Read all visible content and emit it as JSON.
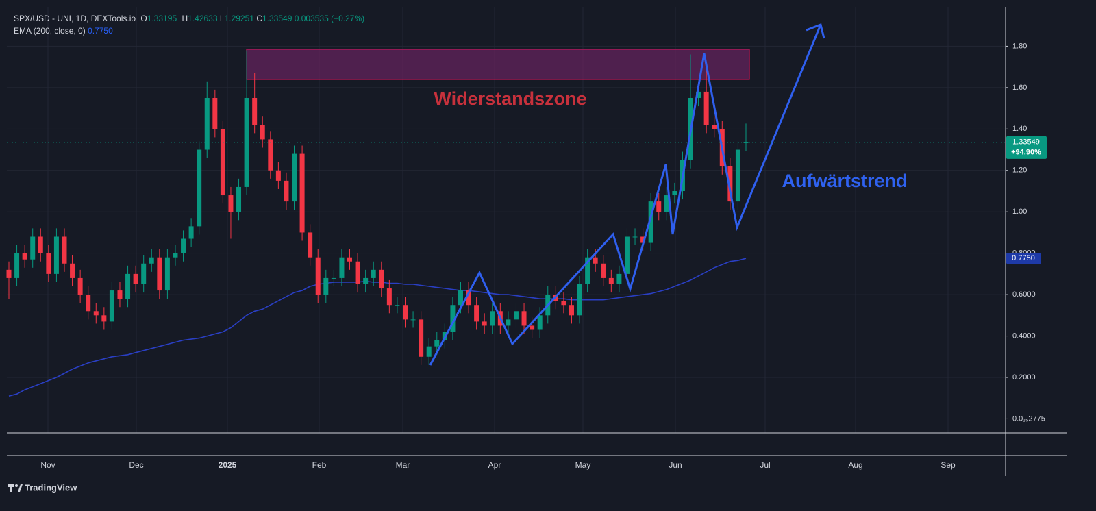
{
  "chart_data": {
    "type": "candlestick",
    "title": "SPX/USD - UNI, 1D, DEXTools.io",
    "legend_keys": [
      "O",
      "H",
      "L",
      "C"
    ],
    "change": "0.003535 (+0.27%)",
    "up_color": "#089981",
    "down_color": "#f23645",
    "open": [
      0.72,
      0.68,
      0.8,
      0.77,
      0.88,
      0.8,
      0.7,
      0.88,
      0.75,
      0.68,
      0.6,
      0.52,
      0.5,
      0.47,
      0.62,
      0.58,
      0.7,
      0.65,
      0.75,
      0.78,
      0.62,
      0.78,
      0.8,
      0.87,
      0.93,
      1.3,
      1.55,
      1.4,
      1.08,
      1.0,
      1.12,
      1.55,
      1.42,
      1.35,
      1.2,
      1.15,
      1.05,
      1.28,
      0.9,
      0.78,
      0.6,
      0.68,
      0.68,
      0.78,
      0.76,
      0.65,
      0.68,
      0.72,
      0.63,
      0.55,
      0.55,
      0.48,
      0.48,
      0.3,
      0.35,
      0.38,
      0.42,
      0.55,
      0.62,
      0.55,
      0.47,
      0.45,
      0.52,
      0.45,
      0.48,
      0.52,
      0.45,
      0.43,
      0.5,
      0.6,
      0.57,
      0.55,
      0.5,
      0.65,
      0.78,
      0.75,
      0.68,
      0.65,
      0.7,
      0.88,
      0.88,
      0.85,
      1.05,
      1.0,
      1.08,
      1.1,
      1.25,
      1.55,
      1.58,
      1.42,
      1.4,
      1.22,
      1.05,
      1.33195
    ],
    "high": [
      0.76,
      0.84,
      0.84,
      0.92,
      0.92,
      0.84,
      0.92,
      0.92,
      0.79,
      0.72,
      0.64,
      0.56,
      0.54,
      0.66,
      0.66,
      0.74,
      0.74,
      0.79,
      0.82,
      0.82,
      0.82,
      0.84,
      0.91,
      0.97,
      1.34,
      1.63,
      1.59,
      1.44,
      1.12,
      1.16,
      1.78,
      1.67,
      1.46,
      1.39,
      1.24,
      1.19,
      1.32,
      1.32,
      0.94,
      0.82,
      0.72,
      0.72,
      0.82,
      0.82,
      0.8,
      0.72,
      0.76,
      0.76,
      0.67,
      0.59,
      0.59,
      0.52,
      0.52,
      0.39,
      0.42,
      0.46,
      0.59,
      0.66,
      0.66,
      0.59,
      0.51,
      0.56,
      0.56,
      0.52,
      0.56,
      0.56,
      0.49,
      0.54,
      0.64,
      0.64,
      0.61,
      0.59,
      0.69,
      0.82,
      0.82,
      0.79,
      0.72,
      0.74,
      0.92,
      0.92,
      0.92,
      1.09,
      1.09,
      1.12,
      1.14,
      1.29,
      1.76,
      1.62,
      1.7,
      1.46,
      1.44,
      1.26,
      1.34,
      1.42633
    ],
    "low": [
      0.58,
      0.64,
      0.73,
      0.73,
      0.76,
      0.66,
      0.66,
      0.71,
      0.64,
      0.56,
      0.48,
      0.46,
      0.43,
      0.43,
      0.54,
      0.54,
      0.61,
      0.61,
      0.71,
      0.58,
      0.58,
      0.74,
      0.76,
      0.83,
      0.89,
      1.26,
      1.36,
      1.04,
      0.87,
      0.96,
      1.08,
      1.38,
      1.31,
      1.16,
      1.11,
      1.01,
      1.01,
      0.86,
      0.74,
      0.56,
      0.56,
      0.64,
      0.64,
      0.72,
      0.61,
      0.61,
      0.64,
      0.59,
      0.51,
      0.51,
      0.44,
      0.44,
      0.26,
      0.26,
      0.31,
      0.34,
      0.38,
      0.51,
      0.51,
      0.43,
      0.41,
      0.41,
      0.41,
      0.41,
      0.44,
      0.41,
      0.39,
      0.39,
      0.46,
      0.53,
      0.51,
      0.46,
      0.46,
      0.61,
      0.71,
      0.64,
      0.61,
      0.61,
      0.66,
      0.84,
      0.81,
      0.81,
      0.96,
      0.96,
      1.04,
      1.06,
      1.21,
      1.51,
      1.38,
      1.36,
      1.18,
      1.01,
      1.01,
      1.29251
    ],
    "close": [
      0.68,
      0.8,
      0.77,
      0.88,
      0.8,
      0.7,
      0.88,
      0.75,
      0.68,
      0.6,
      0.52,
      0.5,
      0.47,
      0.62,
      0.58,
      0.7,
      0.65,
      0.75,
      0.78,
      0.62,
      0.78,
      0.8,
      0.87,
      0.93,
      1.3,
      1.55,
      1.4,
      1.08,
      1.0,
      1.12,
      1.55,
      1.42,
      1.35,
      1.2,
      1.15,
      1.05,
      1.28,
      0.9,
      0.78,
      0.6,
      0.68,
      0.68,
      0.78,
      0.76,
      0.65,
      0.68,
      0.72,
      0.63,
      0.55,
      0.55,
      0.48,
      0.48,
      0.3,
      0.35,
      0.38,
      0.42,
      0.55,
      0.62,
      0.55,
      0.47,
      0.45,
      0.52,
      0.45,
      0.48,
      0.52,
      0.45,
      0.43,
      0.5,
      0.6,
      0.57,
      0.55,
      0.5,
      0.65,
      0.78,
      0.75,
      0.68,
      0.65,
      0.7,
      0.88,
      0.88,
      0.85,
      1.05,
      1.0,
      1.08,
      1.1,
      1.25,
      1.55,
      1.58,
      1.42,
      1.4,
      1.22,
      1.05,
      1.3,
      1.33549
    ],
    "ema": {
      "name": "EMA (200, close, 0)",
      "label": "0.7750",
      "color": "#2a3fc4",
      "values": [
        0.11,
        0.12,
        0.14,
        0.155,
        0.17,
        0.185,
        0.2,
        0.22,
        0.24,
        0.255,
        0.27,
        0.28,
        0.29,
        0.3,
        0.305,
        0.31,
        0.32,
        0.33,
        0.34,
        0.35,
        0.36,
        0.37,
        0.38,
        0.385,
        0.39,
        0.4,
        0.41,
        0.42,
        0.44,
        0.47,
        0.5,
        0.52,
        0.53,
        0.55,
        0.57,
        0.59,
        0.61,
        0.62,
        0.64,
        0.65,
        0.655,
        0.66,
        0.66,
        0.66,
        0.66,
        0.665,
        0.66,
        0.66,
        0.655,
        0.655,
        0.65,
        0.65,
        0.645,
        0.64,
        0.635,
        0.63,
        0.625,
        0.62,
        0.62,
        0.615,
        0.61,
        0.605,
        0.6,
        0.6,
        0.595,
        0.59,
        0.585,
        0.58,
        0.58,
        0.58,
        0.58,
        0.575,
        0.575,
        0.575,
        0.575,
        0.575,
        0.58,
        0.585,
        0.59,
        0.595,
        0.6,
        0.605,
        0.615,
        0.625,
        0.64,
        0.655,
        0.67,
        0.69,
        0.71,
        0.73,
        0.745,
        0.76,
        0.765,
        0.775
      ]
    },
    "last_change": "+94.90%",
    "ylim": [
      -0.068,
      1.99
    ],
    "yticks": [
      {
        "value": 1.8,
        "label": "1.80"
      },
      {
        "value": 1.6,
        "label": "1.60"
      },
      {
        "value": 1.4,
        "label": "1.40"
      },
      {
        "value": 1.2,
        "label": "1.20"
      },
      {
        "value": 1.0,
        "label": "1.00"
      },
      {
        "value": 0.8,
        "label": "0.8000"
      },
      {
        "value": 0.6,
        "label": "0.6000"
      },
      {
        "value": 0.4,
        "label": "0.4000"
      },
      {
        "value": 0.2,
        "label": "0.2000"
      },
      {
        "value": 2.775e-16,
        "label": "0.0₁₅2775"
      }
    ],
    "x_labels": [
      "Nov",
      "Dec",
      "2025",
      "Feb",
      "Mar",
      "Apr",
      "May",
      "Jun",
      "Jul",
      "Aug",
      "Sep"
    ],
    "annotations": {
      "zone": "Widerstandszone",
      "trend": "Aufwärtstrend"
    },
    "grid": true
  },
  "brand": "TradingView"
}
